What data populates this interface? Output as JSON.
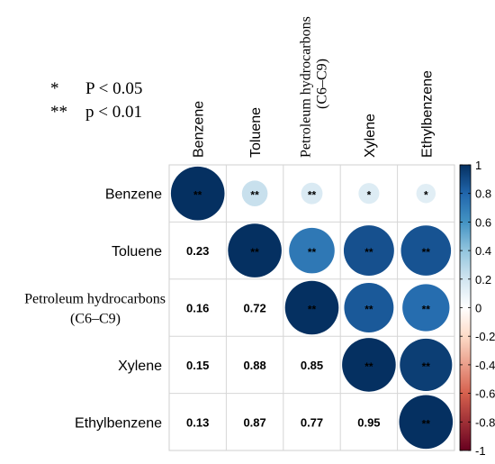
{
  "chart_data": {
    "type": "heatmap",
    "subtype": "correlation-matrix-lower-numbers-upper-circles",
    "variables": [
      "Benzene",
      "Toluene",
      "Petroleum hydrocarbons (C6–C9)",
      "Xylene",
      "Ethylbenzene"
    ],
    "row_labels": [
      {
        "lines": [
          "Benzene"
        ],
        "serif": false
      },
      {
        "lines": [
          "Toluene"
        ],
        "serif": false
      },
      {
        "lines": [
          "Petroleum hydrocarbons",
          "(C6–C9)"
        ],
        "serif": true
      },
      {
        "lines": [
          "Xylene"
        ],
        "serif": false
      },
      {
        "lines": [
          "Ethylbenzene"
        ],
        "serif": false
      }
    ],
    "col_labels": [
      {
        "lines": [
          "Benzene"
        ],
        "serif": false
      },
      {
        "lines": [
          "Toluene"
        ],
        "serif": false
      },
      {
        "lines": [
          "Petroleum hydrocarbons",
          "(C6–C9)"
        ],
        "serif": true
      },
      {
        "lines": [
          "Xylene"
        ],
        "serif": false
      },
      {
        "lines": [
          "Ethylbenzene"
        ],
        "serif": false
      }
    ],
    "matrix": [
      [
        1.0,
        0.23,
        0.16,
        0.15,
        0.13
      ],
      [
        0.23,
        1.0,
        0.72,
        0.88,
        0.87
      ],
      [
        0.16,
        0.72,
        1.0,
        0.85,
        0.77
      ],
      [
        0.15,
        0.88,
        0.85,
        1.0,
        0.95
      ],
      [
        0.13,
        0.87,
        0.77,
        0.95,
        1.0
      ]
    ],
    "significance": [
      [
        "**",
        "**",
        "**",
        "*",
        "*"
      ],
      [
        "**",
        "**",
        "**",
        "**",
        "**"
      ],
      [
        "**",
        "**",
        "**",
        "**",
        "**"
      ],
      [
        "*",
        "**",
        "**",
        "**",
        "**"
      ],
      [
        "*",
        "**",
        "**",
        "**",
        "**"
      ]
    ],
    "significance_legend": [
      {
        "symbol": "*",
        "text": "P < 0.05"
      },
      {
        "symbol": "**",
        "text": "p < 0.01"
      }
    ],
    "colorbar": {
      "range": [
        -1,
        1
      ],
      "ticks": [
        "1",
        "0.8",
        "0.6",
        "0.4",
        "0.2",
        "0",
        "-0.2",
        "-0.4",
        "-0.6",
        "-0.8",
        "-1"
      ]
    }
  }
}
